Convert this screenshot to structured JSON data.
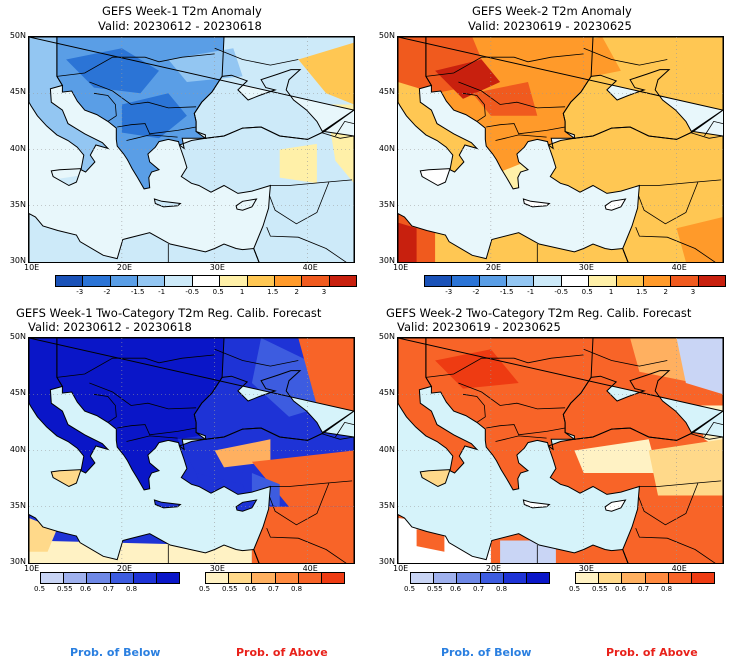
{
  "panels": [
    {
      "id": "p1",
      "title": "GEFS Week-1 T2m Anomaly",
      "valid": "Valid: 20230612 - 20230618",
      "scheme": "cool"
    },
    {
      "id": "p2",
      "title": "GEFS Week-2 T2m Anomaly",
      "valid": "Valid: 20230619 - 20230625",
      "scheme": "warm"
    },
    {
      "id": "p3",
      "title": "GEFS Week-1 Two-Category T2m Reg. Calib. Forecast",
      "valid": "Valid: 20230612 - 20230618",
      "scheme": "below"
    },
    {
      "id": "p4",
      "title": "GEFS Week-2 Two-Category T2m Reg. Calib. Forecast",
      "valid": "Valid: 20230619 - 20230625",
      "scheme": "above"
    }
  ],
  "lat_labels": [
    "50N",
    "45N",
    "40N",
    "35N",
    "30N"
  ],
  "lon_labels": [
    "10E",
    "20E",
    "30E",
    "40E"
  ],
  "anomaly_colorbar": {
    "ticks": [
      "-3",
      "-2",
      "-1.5",
      "-1",
      "-0.5",
      "0.5",
      "1",
      "1.5",
      "2",
      "3"
    ],
    "colors": [
      "#1a52b8",
      "#2b74d6",
      "#5a9ee6",
      "#93c6f2",
      "#cdeaf9",
      "#ffffff",
      "#fff0a8",
      "#ffc753",
      "#ff9a2a",
      "#f05a1e",
      "#c8200e"
    ]
  },
  "prob_below_colorbar": {
    "ticks": [
      "0.5",
      "0.55",
      "0.6",
      "0.7",
      "0.8"
    ],
    "colors": [
      "#c9d5f5",
      "#9fb1ee",
      "#6e88e6",
      "#3d5ce0",
      "#1e33d6",
      "#0a16c8"
    ]
  },
  "prob_above_colorbar": {
    "ticks": [
      "0.5",
      "0.55",
      "0.6",
      "0.7",
      "0.8"
    ],
    "colors": [
      "#fff2c4",
      "#ffd98a",
      "#ffb060",
      "#ff8a40",
      "#f86428",
      "#ee3b12"
    ]
  },
  "footer": {
    "below": "Prob. of Below",
    "above": "Prob. of Above",
    "below_color": "#2a7fe0",
    "above_color": "#e8211a"
  },
  "colors": {
    "sea": "#e8f7fb",
    "sea_prob": "#d6f3fa",
    "border": "#000000"
  }
}
